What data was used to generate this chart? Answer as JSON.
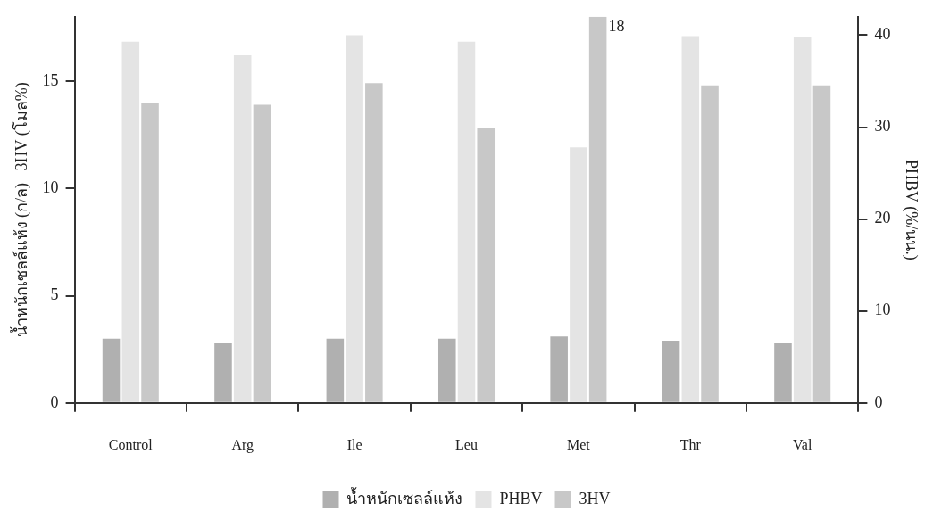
{
  "chart_data": {
    "type": "bar",
    "ylabel": "น้ำหนักเซลล์แห้ง (ก/ล)   3HV (โมล%)",
    "y2label": "PHBV (%/นน.)",
    "categories": [
      "Control",
      "Arg",
      "Ile",
      "Leu",
      "Met",
      "Thr",
      "Val"
    ],
    "series": [
      {
        "name": "น้ำหนักเซลล์แห้ง",
        "color": "#b0b0b0",
        "values": [
          3.0,
          2.8,
          3.0,
          3.0,
          3.1,
          2.9,
          2.8
        ]
      },
      {
        "name": "PHBV",
        "color": "#e4e4e4",
        "axis": "y2",
        "values": [
          39.3,
          37.8,
          40.0,
          39.3,
          27.8,
          39.9,
          39.8
        ]
      },
      {
        "name": "3HV",
        "color": "#c8c8c8",
        "values": [
          14.0,
          13.9,
          14.9,
          12.8,
          18,
          14.8,
          14.8
        ],
        "value_labels": [
          null,
          null,
          null,
          null,
          "18",
          null,
          null
        ]
      }
    ],
    "ylim": [
      0,
      18
    ],
    "yticks": [
      0,
      5,
      10,
      15
    ],
    "y2lim": [
      0,
      42
    ],
    "y2ticks": [
      0,
      10,
      20,
      30,
      40
    ],
    "grid": false,
    "legend": "bottom"
  }
}
